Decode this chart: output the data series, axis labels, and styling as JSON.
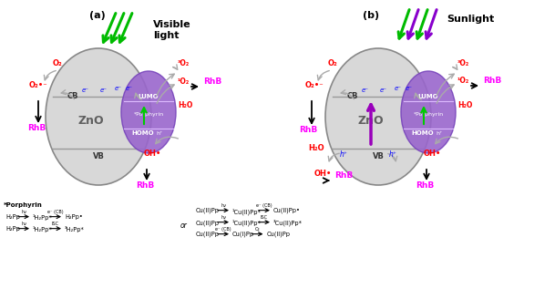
{
  "fig_width": 6.09,
  "fig_height": 3.17,
  "dpi": 100,
  "bg_color": "#ffffff",
  "panel_a_label": "(a)",
  "panel_b_label": "(b)",
  "visible_light_label": "Visible\nlight",
  "sunlight_label": "Sunlight",
  "ZnO_label": "ZnO",
  "CB_label": "CB",
  "VB_label": "VB",
  "LUMO_label": "LUMO",
  "HOMO_label": "HOMO",
  "porphyrin_label": "*Porphyrin",
  "O2_label": "O₂",
  "O2rad_label": "O₂•⁻",
  "3O2_label": "³O₂",
  "1O2_label": "¹O₂",
  "RhB_label": "RhB",
  "H2O_label": "H₂O",
  "OH_label": "OH•",
  "e_label": "e⁻",
  "h_label": "h⁺",
  "red_color": "#ff0000",
  "magenta_color": "#ff00ff",
  "blue_color": "#0000ff",
  "gray_zno": "#d4d4d4",
  "gray_zno_edge": "#888888",
  "purple_pp": "#8855bb",
  "purple_pp_edge": "#6633aa",
  "bottom_porphyrin_title": "*Porphyrin",
  "or_label": "or"
}
